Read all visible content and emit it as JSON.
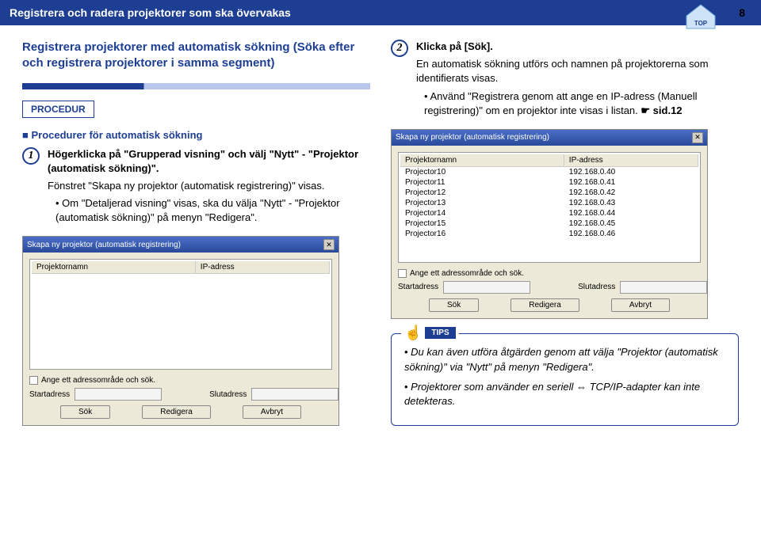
{
  "header": {
    "title": "Registrera och radera projektorer som ska övervakas",
    "page_number": "8",
    "top_label": "TOP"
  },
  "left": {
    "subtitle": "Registrera projektorer med automatisk sökning (Söka efter och registrera projektorer i samma segment)",
    "procedure_label": "PROCEDUR",
    "section_heading": "Procedurer för automatisk sökning",
    "step1": {
      "num": "1",
      "line1": "Högerklicka på \"Grupperad visning\" och välj \"Nytt\" - \"Projektor (automatisk sökning)\".",
      "line2": "Fönstret \"Skapa ny projektor (automatisk registrering)\" visas.",
      "bullet": "Om \"Detaljerad visning\" visas, ska du välja \"Nytt\" - \"Projektor (automatisk sökning)\" på menyn \"Redigera\"."
    },
    "dialog": {
      "title": "Skapa ny projektor (automatisk registrering)",
      "col_name": "Projektornamn",
      "col_ip": "IP-adress",
      "checkbox_label": "Ange ett adressområde och sök.",
      "start_label": "Startadress",
      "end_label": "Slutadress",
      "btn_search": "Sök",
      "btn_edit": "Redigera",
      "btn_cancel": "Avbryt"
    }
  },
  "right": {
    "step2": {
      "num": "2",
      "line1": "Klicka på [Sök].",
      "line2": "En automatisk sökning utförs och namnen på projektorerna som identifierats visas.",
      "bullet_a": "Använd \"Registrera genom att ange en IP-adress (Manuell registrering)\" om en projektor inte visas i listan. ",
      "bullet_ref": "sid.12"
    },
    "dialog": {
      "title": "Skapa ny projektor (automatisk registrering)",
      "col_name": "Projektornamn",
      "col_ip": "IP-adress",
      "rows": [
        {
          "name": "Projector10",
          "ip": "192.168.0.40"
        },
        {
          "name": "Projector11",
          "ip": "192.168.0.41"
        },
        {
          "name": "Projector12",
          "ip": "192.168.0.42"
        },
        {
          "name": "Projector13",
          "ip": "192.168.0.43"
        },
        {
          "name": "Projector14",
          "ip": "192.168.0.44"
        },
        {
          "name": "Projector15",
          "ip": "192.168.0.45"
        },
        {
          "name": "Projector16",
          "ip": "192.168.0.46"
        }
      ],
      "checkbox_label": "Ange ett adressområde och sök.",
      "start_label": "Startadress",
      "end_label": "Slutadress",
      "btn_search": "Sök",
      "btn_edit": "Redigera",
      "btn_cancel": "Avbryt"
    },
    "tips": {
      "label": "TIPS",
      "p1": "Du kan även utföra åtgärden genom att välja \"Projektor (automatisk sökning)\" via \"Nytt\" på menyn \"Redigera\".",
      "p2_a": "Projektorer som använder en seriell ",
      "p2_b": " TCP/IP-adapter kan inte detekteras."
    }
  }
}
